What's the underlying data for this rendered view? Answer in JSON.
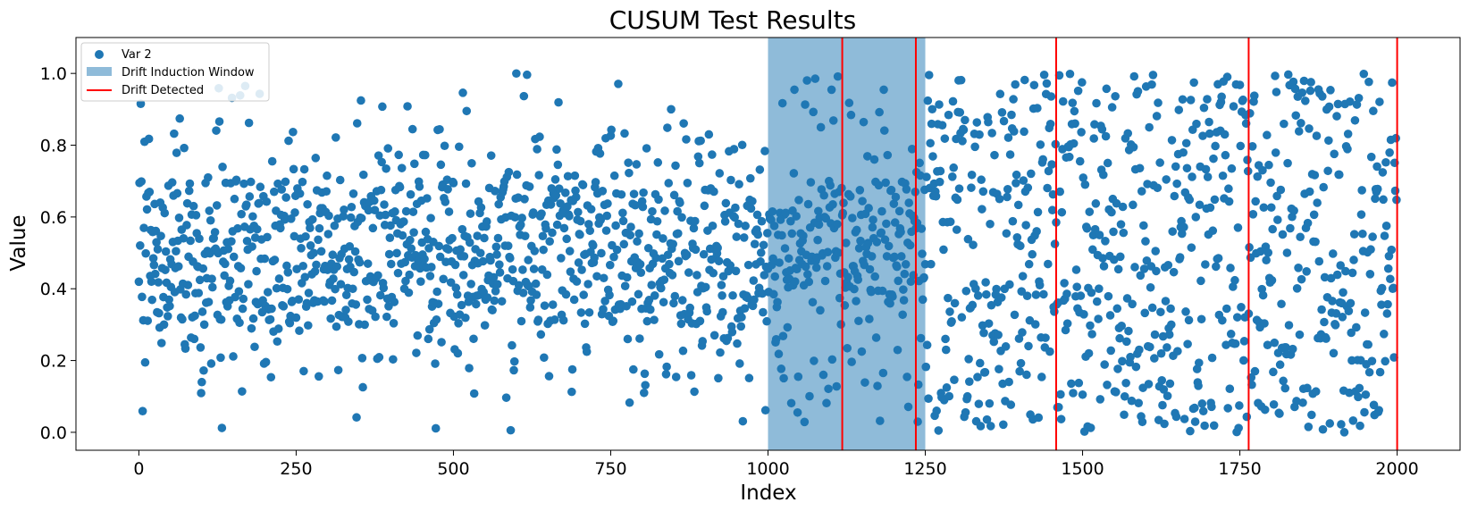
{
  "chart_data": {
    "type": "scatter",
    "title": "CUSUM Test Results",
    "xlabel": "Index",
    "ylabel": "Value",
    "xlim": [
      -100,
      2100
    ],
    "ylim": [
      -0.05,
      1.1
    ],
    "xticks": [
      0,
      250,
      500,
      750,
      1000,
      1250,
      1500,
      1750,
      2000
    ],
    "xtick_labels": [
      "0",
      "250",
      "500",
      "750",
      "1000",
      "1250",
      "1500",
      "1750",
      "2000"
    ],
    "yticks": [
      0.0,
      0.2,
      0.4,
      0.6,
      0.8,
      1.0
    ],
    "ytick_labels": [
      "0.0",
      "0.2",
      "0.4",
      "0.6",
      "0.8",
      "1.0"
    ],
    "grid": false,
    "legend_position": "top-left",
    "series": [
      {
        "name": "Var 2",
        "color": "#1f77b4",
        "n_points": 2000,
        "segments": [
          {
            "x_range": [
              0,
              1000
            ],
            "distribution": "concentrated around 0.3-0.7, sparse near 0 and 1"
          },
          {
            "x_range": [
              1000,
              1250
            ],
            "distribution": "transition; concentrated around 0.4-0.7"
          },
          {
            "x_range": [
              1250,
              2000
            ],
            "distribution": "uniform over 0-1"
          }
        ]
      }
    ],
    "drift_window": {
      "label": "Drift Induction Window",
      "x_start": 1000,
      "x_end": 1250,
      "color": "#1f77b4",
      "opacity": 0.5
    },
    "drift_detected": {
      "label": "Drift Detected",
      "color": "#ff0000",
      "x": [
        1118,
        1235,
        1458,
        1764,
        2000
      ]
    }
  }
}
